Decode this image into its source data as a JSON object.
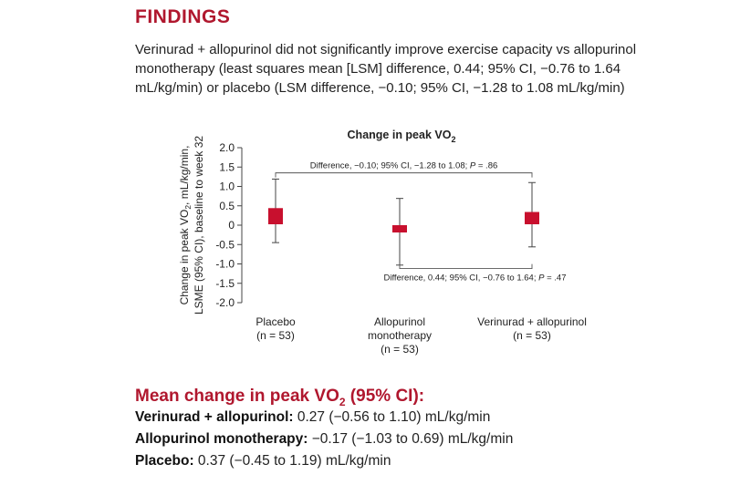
{
  "heading": "FINDINGS",
  "finding_text": "Verinurad + allopurinol did not significantly improve exercise capacity vs allopurinol monotherapy (least squares mean [LSM] difference, 0.44; 95% CI, −0.76 to 1.64 mL/kg/min) or placebo (LSM difference, −0.10; 95% CI, −1.28 to 1.08 mL/kg/min)",
  "chart_data": {
    "type": "scatter",
    "title": "Change in peak VO",
    "title_subscript": "2",
    "ylabel_line1": "Change in peak VO",
    "ylabel_sub": "2",
    "ylabel_line1_rest": ", mL/kg/min,",
    "ylabel_line2": "LSME (95% CI), baseline to week 32",
    "ylim": [
      -2.0,
      2.0
    ],
    "yticks": [
      2.0,
      1.5,
      1.0,
      0.5,
      0,
      -0.5,
      -1.0,
      -1.5,
      -2.0
    ],
    "ytick_labels": [
      "2.0",
      "1.5",
      "1.0",
      "0.5",
      "0",
      "-0.5",
      "-1.0",
      "-1.5",
      "-2.0"
    ],
    "categories": [
      {
        "line1": "Placebo",
        "line2": "(n = 53)",
        "line3": ""
      },
      {
        "line1": "Allopurinol",
        "line2": "monotherapy",
        "line3": "(n = 53)"
      },
      {
        "line1": "Verinurad + allopurinol",
        "line2": "(n = 53)",
        "line3": ""
      }
    ],
    "points": [
      {
        "value": 0.37,
        "lower": -0.45,
        "upper": 1.19
      },
      {
        "value": -0.17,
        "lower": -1.03,
        "upper": 0.69
      },
      {
        "value": 0.27,
        "lower": -0.56,
        "upper": 1.1
      }
    ],
    "marker_color": "#c8102e",
    "annotations": [
      {
        "text": "Difference, −0.10; 95% CI, −1.28 to 1.08; ",
        "p_label": "P",
        "p_value": " = .86",
        "from": 0,
        "to": 2,
        "position": "above",
        "y": 1.35
      },
      {
        "text": "Difference, 0.44; 95% CI, −0.76 to 1.64; ",
        "p_label": "P",
        "p_value": " = .47",
        "from": 1,
        "to": 2,
        "position": "below",
        "y": -1.12
      }
    ]
  },
  "mean_section": {
    "title": "Mean change in peak VO",
    "title_sub": "2",
    "title_rest": " (95% CI):",
    "lines": [
      {
        "label": "Verinurad + allopurinol:",
        "value": " 0.27 (−0.56 to 1.10) mL/kg/min"
      },
      {
        "label": "Allopurinol monotherapy:",
        "value": " −0.17 (−1.03 to 0.69) mL/kg/min"
      },
      {
        "label": "Placebo:",
        "value": " 0.37 (−0.45 to 1.19) mL/kg/min"
      }
    ]
  }
}
